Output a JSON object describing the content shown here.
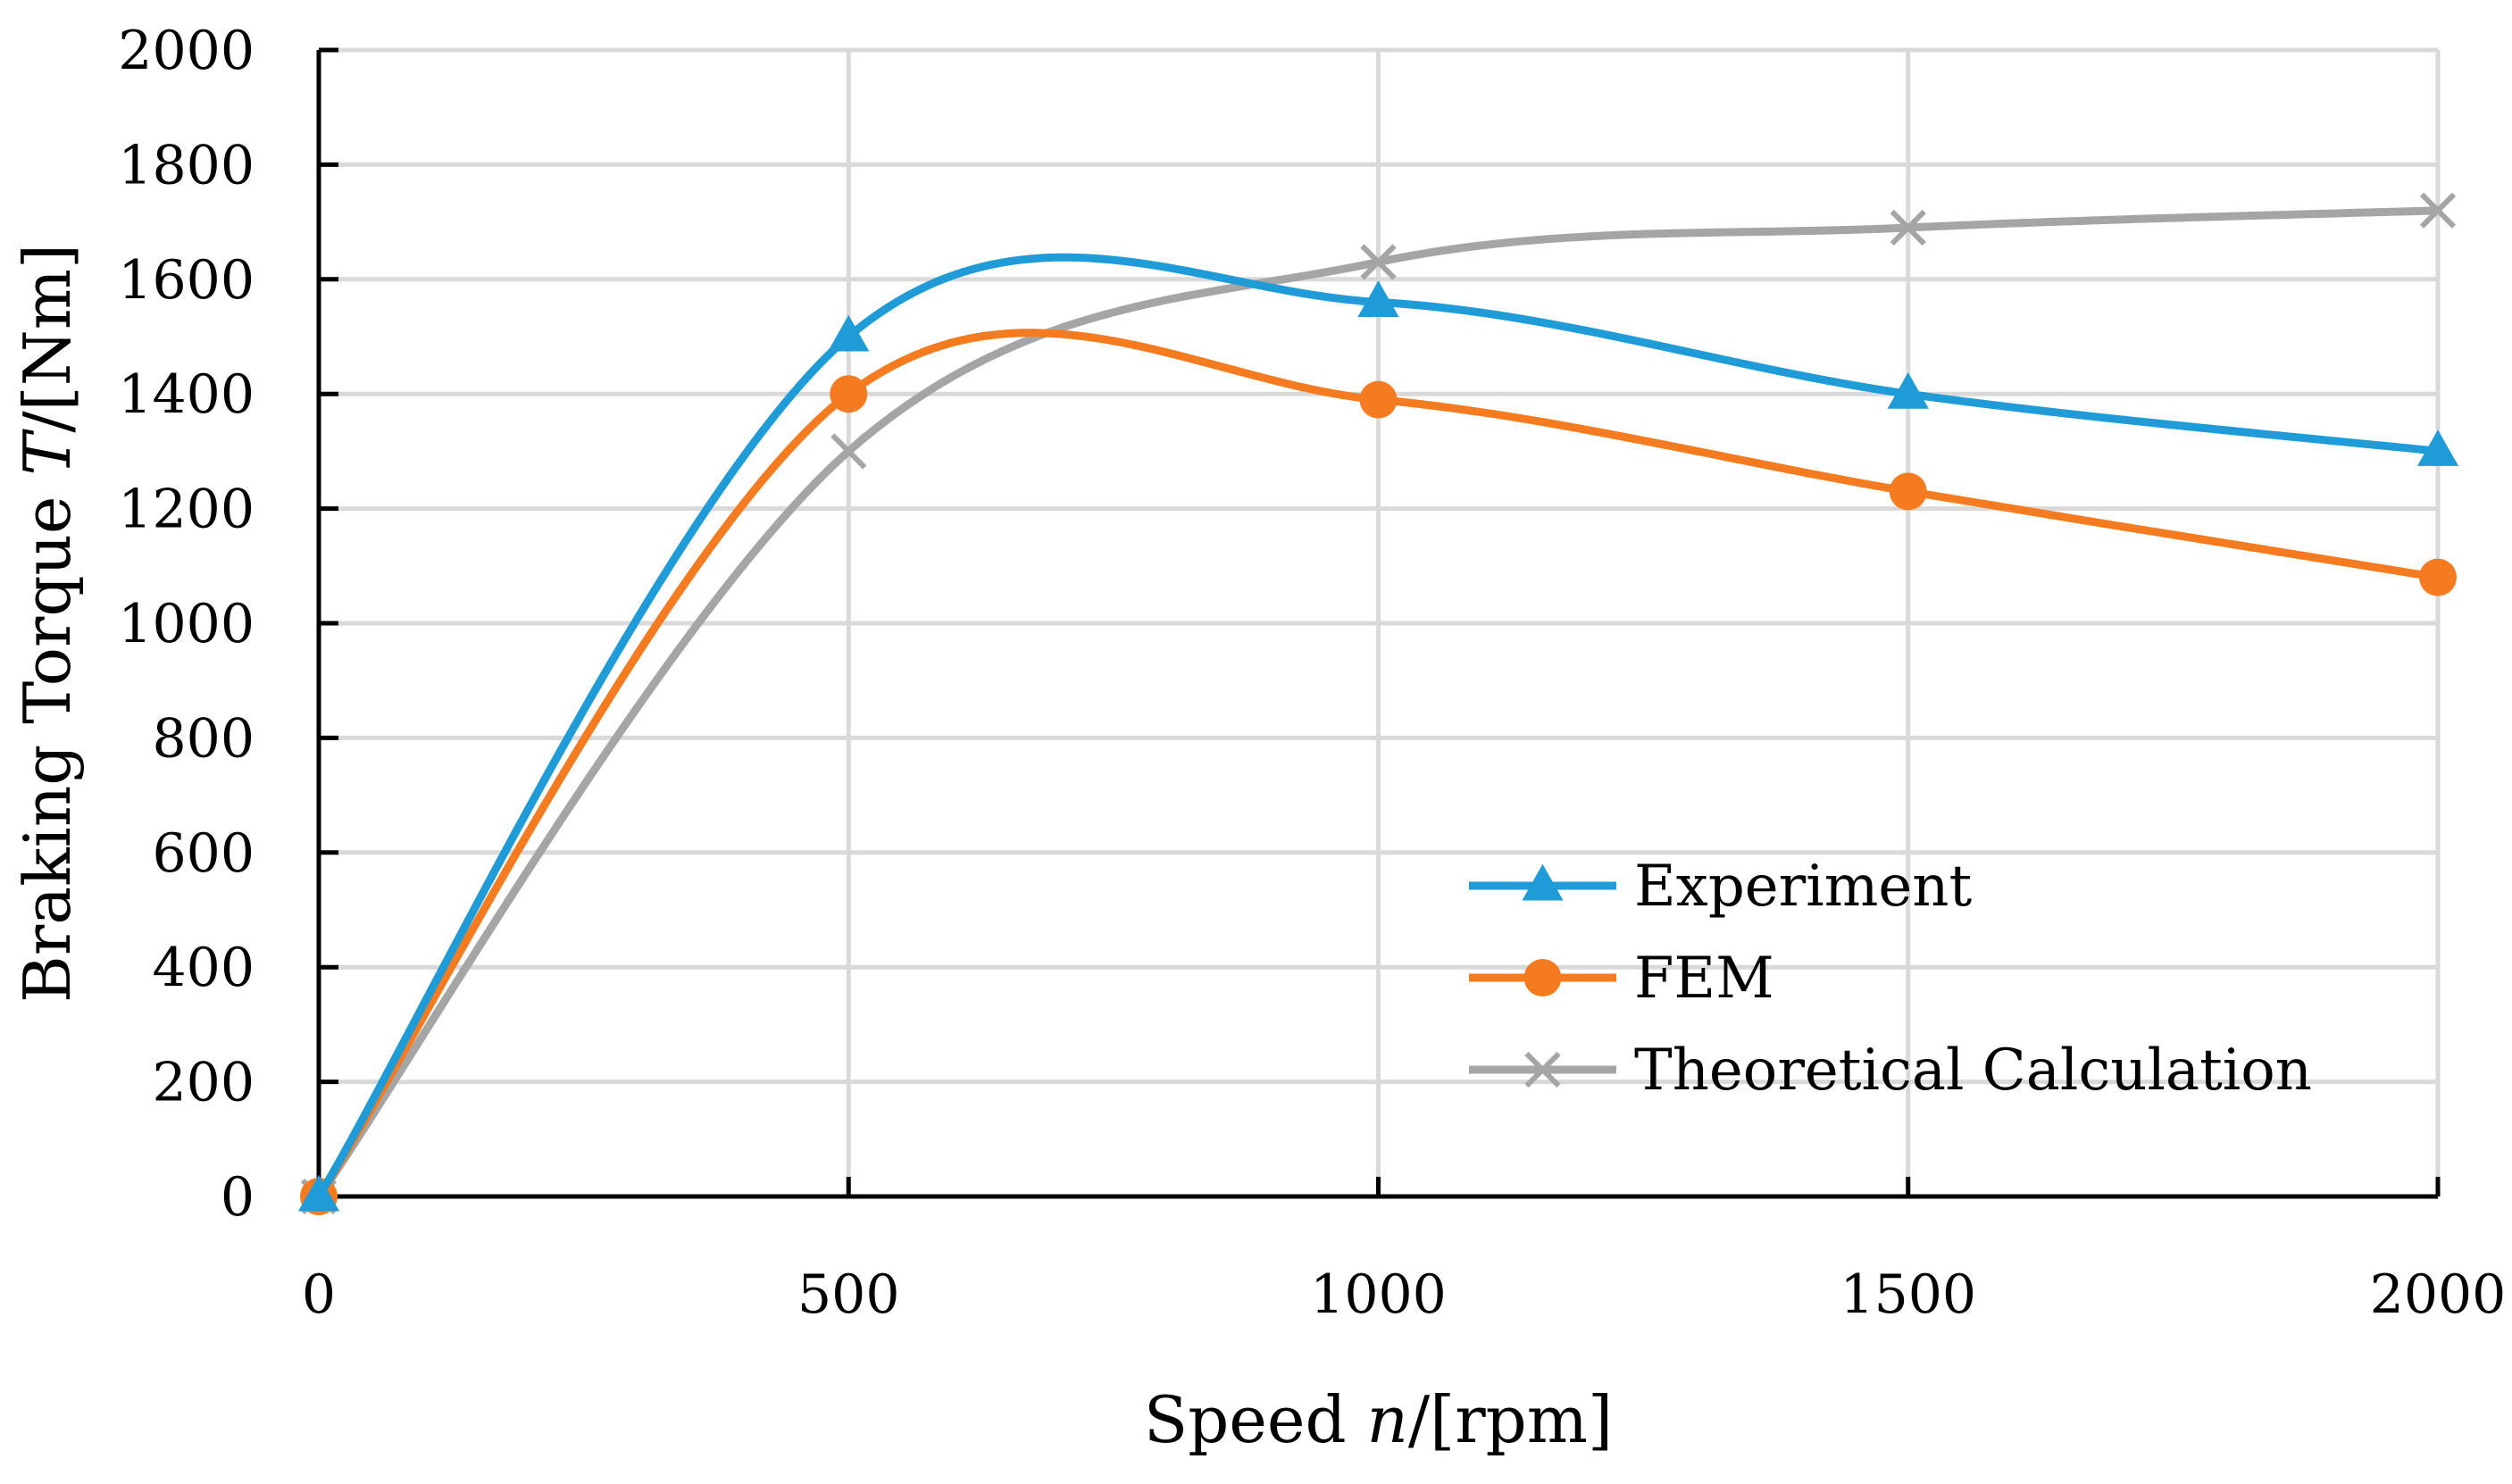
{
  "chart_data": {
    "type": "line",
    "title": "",
    "xlabel": "Speed n/[rpm]",
    "xlabel_parts": [
      "Speed ",
      "n",
      "/[rpm]"
    ],
    "ylabel": "Braking Torque T/[Nm]",
    "ylabel_parts": [
      "Braking Torque ",
      "T",
      "/[Nm]"
    ],
    "x": [
      0,
      500,
      1000,
      1500,
      2000
    ],
    "xlim": [
      0,
      2000
    ],
    "ylim": [
      0,
      2000
    ],
    "xticks": [
      0,
      500,
      1000,
      1500,
      2000
    ],
    "yticks": [
      0,
      200,
      400,
      600,
      800,
      1000,
      1200,
      1400,
      1600,
      1800,
      2000
    ],
    "grid": true,
    "smooth": true,
    "legend_position": "lower-right",
    "series": [
      {
        "name": "Experiment",
        "values": [
          0,
          1500,
          1560,
          1400,
          1300
        ],
        "color": "#1f9bd7",
        "marker": "triangle"
      },
      {
        "name": "FEM",
        "values": [
          0,
          1400,
          1390,
          1230,
          1080
        ],
        "color": "#f47b20",
        "marker": "circle"
      },
      {
        "name": "Theoretical Calculation",
        "values": [
          0,
          1300,
          1630,
          1690,
          1720
        ],
        "color": "#a5a5a5",
        "marker": "x"
      }
    ]
  }
}
